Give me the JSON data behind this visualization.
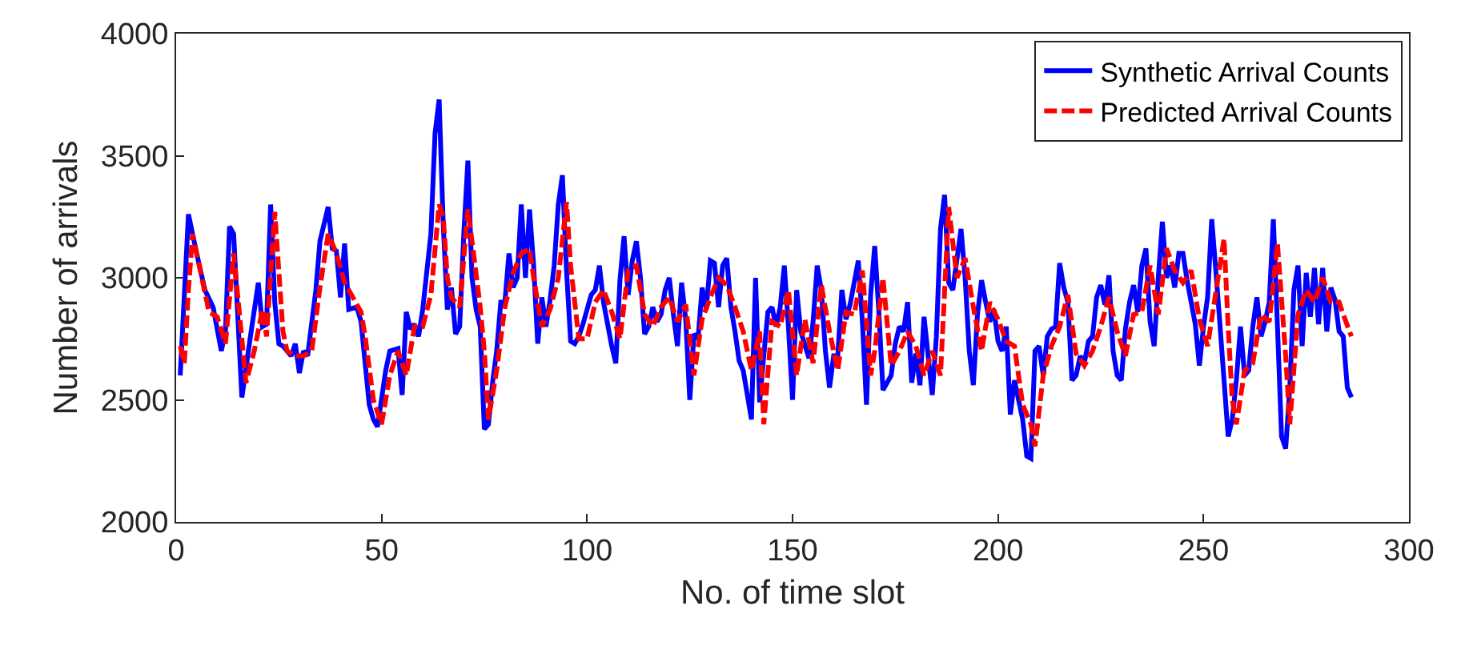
{
  "chart_data": {
    "type": "line",
    "xlabel": "No. of time slot",
    "ylabel": "Number of arrivals",
    "xlim": [
      0,
      300
    ],
    "xticks": [
      0,
      50,
      100,
      150,
      200,
      250,
      300
    ],
    "ylim": [
      2000,
      4000
    ],
    "yticks": [
      2000,
      2500,
      3000,
      3500,
      4000
    ],
    "grid": false,
    "legend": "top right",
    "marker": "none",
    "series": [
      {
        "name": "Synthetic Arrival Counts",
        "color": "#0000ff",
        "line_style": "solid",
        "x": [
          1,
          3,
          5,
          7,
          9,
          11,
          12,
          13,
          14,
          16,
          18,
          20,
          21,
          22,
          23,
          24,
          25,
          26,
          28,
          29,
          30,
          31,
          32,
          34,
          35,
          37,
          38,
          39,
          40,
          41,
          42,
          44,
          45,
          47,
          48,
          49,
          51,
          52,
          54,
          55,
          56,
          57,
          58,
          59,
          60,
          62,
          63,
          64,
          65,
          66,
          67,
          68,
          69,
          70,
          71,
          72,
          73,
          74,
          75,
          76,
          77,
          78,
          79,
          80,
          81,
          82,
          83,
          84,
          85,
          86,
          87,
          88,
          89,
          90,
          91,
          92,
          93,
          94,
          95,
          96,
          97,
          98,
          99,
          101,
          102,
          103,
          104,
          106,
          107,
          108,
          109,
          110,
          111,
          112,
          113,
          114,
          115,
          116,
          117,
          118,
          119,
          120,
          121,
          122,
          123,
          124,
          125,
          126,
          127,
          128,
          129,
          130,
          131,
          132,
          133,
          134,
          135,
          136,
          137,
          138,
          139,
          140,
          141,
          142,
          143,
          144,
          145,
          146,
          147,
          148,
          149,
          150,
          151,
          152,
          154,
          155,
          156,
          157,
          158,
          159,
          160,
          161,
          162,
          163,
          164,
          165,
          166,
          167,
          168,
          169,
          170,
          171,
          172,
          174,
          175,
          176,
          177,
          178,
          179,
          180,
          181,
          182,
          184,
          185,
          186,
          187,
          188,
          189,
          191,
          192,
          193,
          194,
          195,
          196,
          197,
          198,
          199,
          200,
          201,
          202,
          203,
          204,
          206,
          207,
          208,
          209,
          210,
          211,
          212,
          213,
          214,
          215,
          216,
          217,
          218,
          219,
          220,
          221,
          222,
          223,
          224,
          225,
          226,
          227,
          228,
          229,
          230,
          231,
          232,
          233,
          234,
          235,
          236,
          237,
          238,
          239,
          240,
          241,
          242,
          243,
          244,
          245,
          246,
          247,
          248,
          249,
          250,
          251,
          252,
          253,
          254,
          255,
          256,
          257,
          258,
          259,
          260,
          261,
          262,
          263,
          264,
          265,
          266,
          267,
          268,
          269,
          270,
          271,
          272,
          273,
          274,
          275,
          276,
          277,
          278,
          279,
          280,
          281,
          282,
          283,
          284,
          285,
          286
        ],
        "values": [
          2600,
          3260,
          3100,
          2950,
          2880,
          2700,
          2780,
          3210,
          3180,
          2510,
          2750,
          2980,
          2800,
          2810,
          3300,
          2900,
          2730,
          2720,
          2680,
          2730,
          2610,
          2700,
          2680,
          2950,
          3150,
          3290,
          3120,
          3110,
          2920,
          3140,
          2870,
          2880,
          2820,
          2480,
          2420,
          2390,
          2620,
          2700,
          2710,
          2520,
          2860,
          2790,
          2810,
          2760,
          2870,
          3180,
          3590,
          3730,
          3220,
          2870,
          2960,
          2770,
          2800,
          3180,
          3480,
          3000,
          2870,
          2800,
          2380,
          2400,
          2570,
          2700,
          2900,
          2900,
          3100,
          2960,
          3000,
          3300,
          3000,
          3280,
          3050,
          2730,
          2920,
          2800,
          2910,
          3050,
          3300,
          3420,
          3030,
          2740,
          2730,
          2760,
          2810,
          2930,
          2950,
          3050,
          2900,
          2720,
          2650,
          2990,
          3170,
          2930,
          3070,
          3150,
          3000,
          2770,
          2800,
          2880,
          2820,
          2850,
          2950,
          3000,
          2850,
          2720,
          2980,
          2830,
          2500,
          2770,
          2750,
          2960,
          2870,
          3070,
          3060,
          2880,
          3050,
          3080,
          2880,
          2780,
          2660,
          2620,
          2520,
          2420,
          3000,
          2490,
          2680,
          2860,
          2880,
          2800,
          2880,
          3050,
          2800,
          2500,
          2950,
          2780,
          2670,
          2820,
          3050,
          2950,
          2700,
          2550,
          2680,
          2680,
          2950,
          2830,
          2890,
          2980,
          3070,
          2820,
          2480,
          2930,
          3130,
          2860,
          2540,
          2600,
          2730,
          2800,
          2780,
          2900,
          2570,
          2690,
          2560,
          2840,
          2520,
          2760,
          3200,
          3340,
          2980,
          2950,
          3200,
          3000,
          2700,
          2560,
          2850,
          2990,
          2900,
          2820,
          2870,
          2740,
          2700,
          2800,
          2440,
          2580,
          2420,
          2270,
          2260,
          2700,
          2720,
          2600,
          2760,
          2790,
          2800,
          3060,
          2960,
          2900,
          2580,
          2600,
          2680,
          2650,
          2740,
          2760,
          2920,
          2970,
          2890,
          3010,
          2700,
          2600,
          2580,
          2790,
          2900,
          2970,
          2860,
          3050,
          3120,
          2820,
          2720,
          3000,
          3230,
          3000,
          3050,
          2960,
          3100,
          3100,
          2990,
          2900,
          2810,
          2640,
          2800,
          2920,
          3240,
          3030,
          2810,
          2580,
          2350,
          2420,
          2580,
          2800,
          2600,
          2620,
          2800,
          2920,
          2760,
          2820,
          2900,
          3240,
          2800,
          2350,
          2300,
          2550,
          2950,
          3050,
          2720,
          3020,
          2840,
          3040,
          2810,
          3040,
          2780,
          2960,
          2910,
          2780,
          2760,
          2550,
          2510
        ]
      },
      {
        "name": "Predicted Arrival Counts",
        "color": "#ff0000",
        "line_style": "dashed",
        "x": [
          1,
          2,
          3,
          4,
          6,
          8,
          10,
          12,
          14,
          16,
          17,
          19,
          21,
          22,
          24,
          26,
          27,
          29,
          31,
          33,
          35,
          37,
          39,
          41,
          43,
          45,
          46,
          48,
          50,
          52,
          54,
          56,
          58,
          60,
          62,
          64,
          65,
          66,
          67,
          69,
          71,
          72,
          74,
          75,
          76,
          78,
          80,
          82,
          84,
          86,
          87,
          89,
          91,
          93,
          95,
          96,
          98,
          100,
          102,
          104,
          106,
          108,
          110,
          112,
          114,
          116,
          118,
          120,
          122,
          124,
          126,
          128,
          130,
          132,
          134,
          136,
          138,
          140,
          142,
          143,
          145,
          147,
          149,
          151,
          153,
          155,
          157,
          159,
          161,
          163,
          165,
          167,
          169,
          170,
          172,
          174,
          176,
          178,
          180,
          182,
          184,
          186,
          188,
          190,
          192,
          194,
          196,
          198,
          200,
          202,
          204,
          206,
          208,
          209,
          211,
          213,
          215,
          217,
          219,
          221,
          223,
          225,
          227,
          229,
          231,
          233,
          235,
          237,
          239,
          241,
          243,
          245,
          247,
          249,
          251,
          253,
          255,
          256,
          257,
          258,
          260,
          262,
          264,
          266,
          268,
          270,
          271,
          273,
          275,
          277,
          279,
          281,
          283,
          284,
          286
        ],
        "values": [
          2720,
          2650,
          2950,
          3180,
          3020,
          2860,
          2840,
          2730,
          3100,
          2750,
          2570,
          2700,
          2870,
          2760,
          3270,
          2780,
          2700,
          2680,
          2680,
          2700,
          2960,
          3180,
          3100,
          2980,
          2920,
          2860,
          2760,
          2500,
          2400,
          2600,
          2700,
          2600,
          2800,
          2800,
          2930,
          3300,
          3250,
          3000,
          2920,
          2880,
          3280,
          3150,
          2880,
          2700,
          2420,
          2620,
          2880,
          3020,
          3100,
          3120,
          3000,
          2800,
          2870,
          3000,
          3310,
          3050,
          2750,
          2750,
          2900,
          2950,
          2860,
          2750,
          3030,
          3050,
          2850,
          2800,
          2880,
          2920,
          2820,
          2890,
          2600,
          2830,
          2920,
          3000,
          2970,
          2880,
          2780,
          2620,
          2780,
          2400,
          2820,
          2800,
          2950,
          2600,
          2830,
          2650,
          2970,
          2780,
          2620,
          2860,
          2850,
          3030,
          2600,
          2700,
          3000,
          2640,
          2700,
          2780,
          2720,
          2600,
          2700,
          2600,
          3290,
          3000,
          3080,
          2880,
          2700,
          2900,
          2830,
          2740,
          2720,
          2480,
          2400,
          2310,
          2600,
          2720,
          2800,
          2930,
          2690,
          2640,
          2700,
          2800,
          2920,
          2780,
          2680,
          2850,
          2860,
          3050,
          2850,
          3120,
          3030,
          2980,
          3030,
          2830,
          2720,
          2940,
          3160,
          2800,
          2500,
          2400,
          2620,
          2650,
          2850,
          2820,
          3140,
          2680,
          2400,
          2850,
          2950,
          2900,
          3000,
          2900,
          2900,
          2850,
          2760
        ]
      }
    ]
  }
}
